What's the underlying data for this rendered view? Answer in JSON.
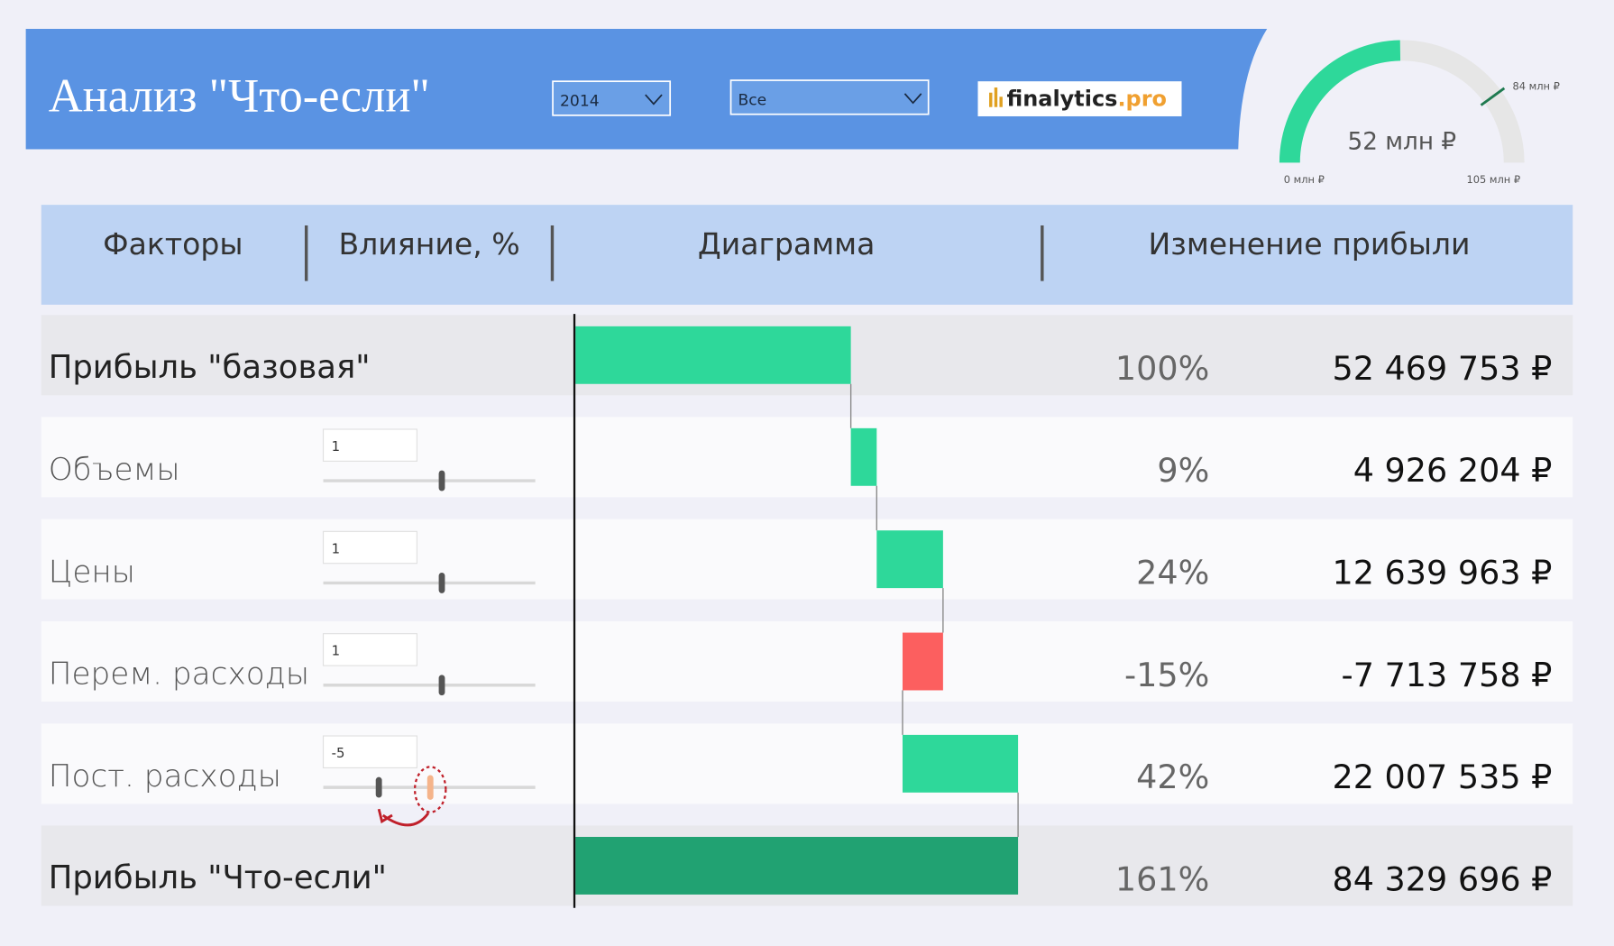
{
  "header": {
    "title": "Анализ \"Что-если\"",
    "year_filter": "2014",
    "category_filter": "Все",
    "logo": {
      "name": "finalytics",
      "suffix": ".pro"
    }
  },
  "gauge": {
    "value": 52,
    "value_label": "52 млн ₽",
    "min": 0,
    "min_label": "0 млн ₽",
    "max": 105,
    "max_label": "105 млн ₽",
    "target": 84,
    "target_label": "84 млн ₽"
  },
  "table": {
    "columns": [
      "Факторы",
      "Влияние, %",
      "Диаграмма",
      "Изменение прибыли"
    ],
    "base": {
      "label": "Прибыль \"базовая\"",
      "impact": "100%",
      "change": 52469753,
      "change_label": "52 469 753 ₽"
    },
    "factors": [
      {
        "label": "Объемы",
        "input": 1,
        "impact": "9%",
        "change": 4926204,
        "change_label": "4 926 204 ₽"
      },
      {
        "label": "Цены",
        "input": 1,
        "impact": "24%",
        "change": 12639963,
        "change_label": "12 639 963 ₽"
      },
      {
        "label": "Перем. расходы",
        "input": 1,
        "impact": "-15%",
        "change": -7713758,
        "change_label": "-7 713 758 ₽"
      },
      {
        "label": "Пост. расходы",
        "input": -5,
        "impact": "42%",
        "change": 22007535,
        "change_label": "22 007 535 ₽"
      }
    ],
    "result": {
      "label": "Прибыль \"Что-если\"",
      "impact": "161%",
      "change": 84329696,
      "change_label": "84 329 696 ₽"
    }
  }
}
